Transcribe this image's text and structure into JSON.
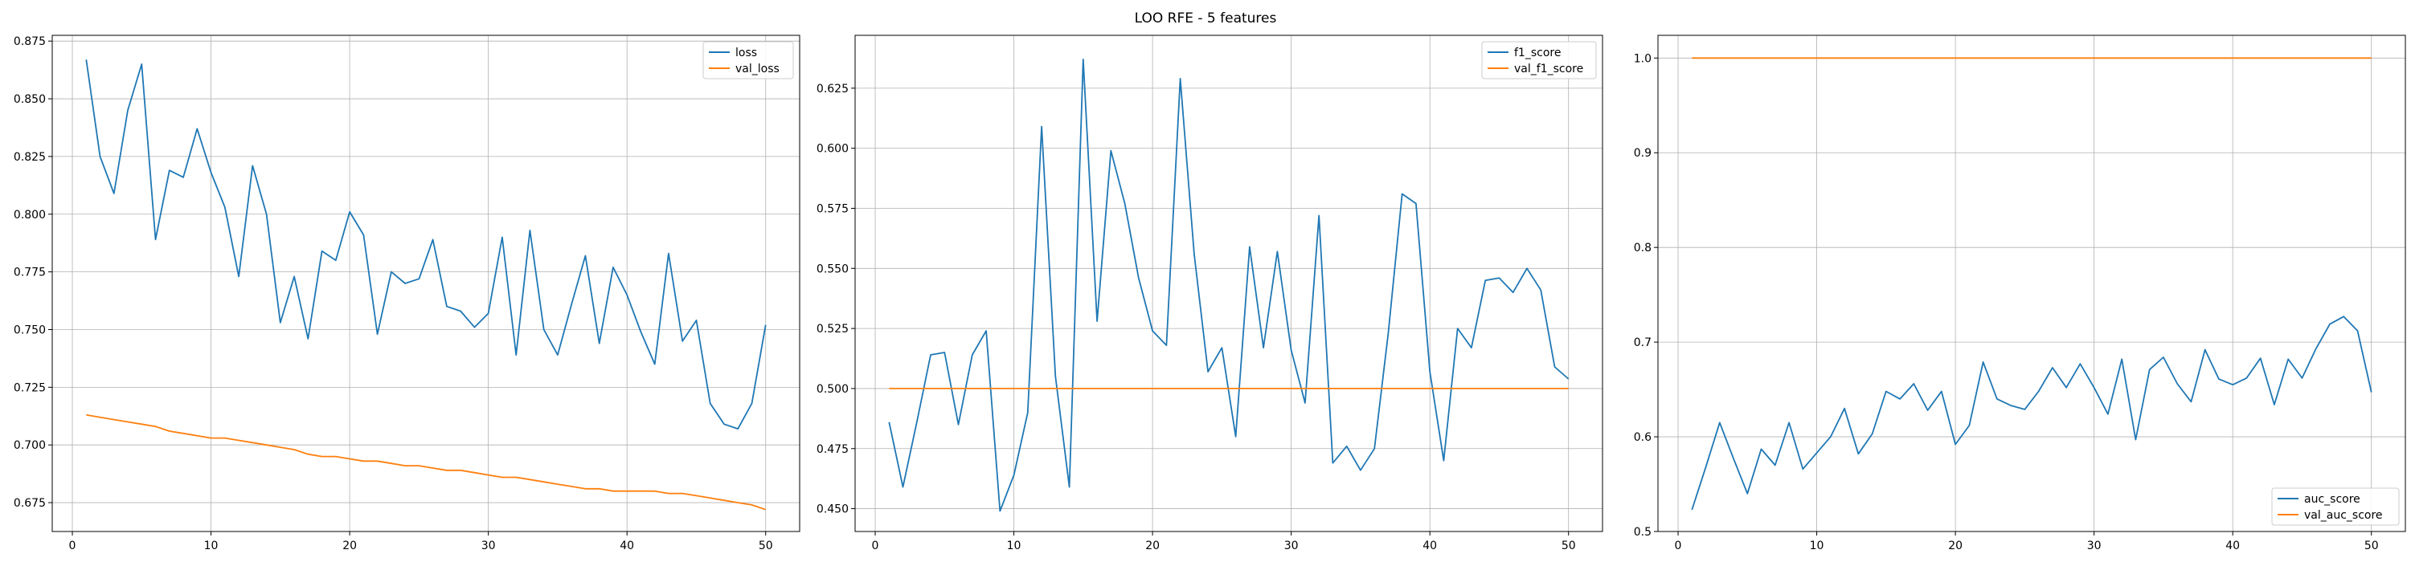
{
  "figure": {
    "title": "LOO RFE - 5 features"
  },
  "chart_data": [
    {
      "type": "line",
      "grid": true,
      "legend_position": "top-right",
      "xlim": [
        -1.45,
        52.45
      ],
      "ylim": [
        0.6625,
        0.8775
      ],
      "xticks": [
        0,
        10,
        20,
        30,
        40,
        50
      ],
      "xtick_labels": [
        "0",
        "10",
        "20",
        "30",
        "40",
        "50"
      ],
      "yticks": [
        0.675,
        0.7,
        0.725,
        0.75,
        0.775,
        0.8,
        0.825,
        0.85,
        0.875
      ],
      "ytick_labels": [
        "0.675",
        "0.700",
        "0.725",
        "0.750",
        "0.775",
        "0.800",
        "0.825",
        "0.850",
        "0.875"
      ],
      "x": [
        1,
        2,
        3,
        4,
        5,
        6,
        7,
        8,
        9,
        10,
        11,
        12,
        13,
        14,
        15,
        16,
        17,
        18,
        19,
        20,
        21,
        22,
        23,
        24,
        25,
        26,
        27,
        28,
        29,
        30,
        31,
        32,
        33,
        34,
        35,
        36,
        37,
        38,
        39,
        40,
        41,
        42,
        43,
        44,
        45,
        46,
        47,
        48,
        49,
        50
      ],
      "series": [
        {
          "name": "loss",
          "color": "#1f77b4",
          "values": [
            0.867,
            0.825,
            0.809,
            0.845,
            0.865,
            0.789,
            0.819,
            0.816,
            0.837,
            0.818,
            0.803,
            0.773,
            0.821,
            0.8,
            0.753,
            0.773,
            0.746,
            0.784,
            0.78,
            0.801,
            0.791,
            0.748,
            0.775,
            0.77,
            0.772,
            0.789,
            0.76,
            0.758,
            0.751,
            0.757,
            0.79,
            0.739,
            0.793,
            0.75,
            0.739,
            0.761,
            0.782,
            0.744,
            0.777,
            0.765,
            0.749,
            0.735,
            0.783,
            0.745,
            0.754,
            0.718,
            0.709,
            0.707,
            0.718,
            0.752
          ]
        },
        {
          "name": "val_loss",
          "color": "#ff7f0e",
          "values": [
            0.713,
            0.712,
            0.711,
            0.71,
            0.709,
            0.708,
            0.706,
            0.705,
            0.704,
            0.703,
            0.703,
            0.702,
            0.701,
            0.7,
            0.699,
            0.698,
            0.696,
            0.695,
            0.695,
            0.694,
            0.693,
            0.693,
            0.692,
            0.691,
            0.691,
            0.69,
            0.689,
            0.689,
            0.688,
            0.687,
            0.686,
            0.686,
            0.685,
            0.684,
            0.683,
            0.682,
            0.681,
            0.681,
            0.68,
            0.68,
            0.68,
            0.68,
            0.679,
            0.679,
            0.678,
            0.677,
            0.676,
            0.675,
            0.674,
            0.672
          ]
        }
      ]
    },
    {
      "type": "line",
      "grid": true,
      "legend_position": "top-right",
      "xlim": [
        -1.45,
        52.45
      ],
      "ylim": [
        0.4405,
        0.647
      ],
      "xticks": [
        0,
        10,
        20,
        30,
        40,
        50
      ],
      "xtick_labels": [
        "0",
        "10",
        "20",
        "30",
        "40",
        "50"
      ],
      "yticks": [
        0.45,
        0.475,
        0.5,
        0.525,
        0.55,
        0.575,
        0.6,
        0.625
      ],
      "ytick_labels": [
        "0.450",
        "0.475",
        "0.500",
        "0.525",
        "0.550",
        "0.575",
        "0.600",
        "0.625"
      ],
      "x": [
        1,
        2,
        3,
        4,
        5,
        6,
        7,
        8,
        9,
        10,
        11,
        12,
        13,
        14,
        15,
        16,
        17,
        18,
        19,
        20,
        21,
        22,
        23,
        24,
        25,
        26,
        27,
        28,
        29,
        30,
        31,
        32,
        33,
        34,
        35,
        36,
        37,
        38,
        39,
        40,
        41,
        42,
        43,
        44,
        45,
        46,
        47,
        48,
        49,
        50
      ],
      "series": [
        {
          "name": "f1_score",
          "color": "#1f77b4",
          "values": [
            0.486,
            0.459,
            0.486,
            0.514,
            0.515,
            0.485,
            0.514,
            0.524,
            0.449,
            0.464,
            0.49,
            0.609,
            0.505,
            0.459,
            0.637,
            0.528,
            0.599,
            0.577,
            0.546,
            0.524,
            0.518,
            0.629,
            0.556,
            0.507,
            0.517,
            0.48,
            0.559,
            0.517,
            0.557,
            0.516,
            0.494,
            0.572,
            0.469,
            0.476,
            0.466,
            0.475,
            0.523,
            0.581,
            0.577,
            0.507,
            0.47,
            0.525,
            0.517,
            0.545,
            0.546,
            0.54,
            0.55,
            0.541,
            0.509,
            0.504
          ]
        },
        {
          "name": "val_f1_score",
          "color": "#ff7f0e",
          "values": [
            0.5,
            0.5,
            0.5,
            0.5,
            0.5,
            0.5,
            0.5,
            0.5,
            0.5,
            0.5,
            0.5,
            0.5,
            0.5,
            0.5,
            0.5,
            0.5,
            0.5,
            0.5,
            0.5,
            0.5,
            0.5,
            0.5,
            0.5,
            0.5,
            0.5,
            0.5,
            0.5,
            0.5,
            0.5,
            0.5,
            0.5,
            0.5,
            0.5,
            0.5,
            0.5,
            0.5,
            0.5,
            0.5,
            0.5,
            0.5,
            0.5,
            0.5,
            0.5,
            0.5,
            0.5,
            0.5,
            0.5,
            0.5,
            0.5,
            0.5
          ]
        }
      ]
    },
    {
      "type": "line",
      "grid": true,
      "legend_position": "bottom-right",
      "xlim": [
        -1.45,
        52.45
      ],
      "ylim": [
        0.5,
        1.024
      ],
      "xticks": [
        0,
        10,
        20,
        30,
        40,
        50
      ],
      "xtick_labels": [
        "0",
        "10",
        "20",
        "30",
        "40",
        "50"
      ],
      "yticks": [
        0.5,
        0.6,
        0.7,
        0.8,
        0.9,
        1.0
      ],
      "ytick_labels": [
        "0.5",
        "0.6",
        "0.7",
        "0.8",
        "0.9",
        "1.0"
      ],
      "x": [
        1,
        2,
        3,
        4,
        5,
        6,
        7,
        8,
        9,
        10,
        11,
        12,
        13,
        14,
        15,
        16,
        17,
        18,
        19,
        20,
        21,
        22,
        23,
        24,
        25,
        26,
        27,
        28,
        29,
        30,
        31,
        32,
        33,
        34,
        35,
        36,
        37,
        38,
        39,
        40,
        41,
        42,
        43,
        44,
        45,
        46,
        47,
        48,
        49,
        50
      ],
      "series": [
        {
          "name": "auc_score",
          "color": "#1f77b4",
          "values": [
            0.523,
            0.568,
            0.615,
            0.577,
            0.54,
            0.587,
            0.57,
            0.615,
            0.566,
            0.583,
            0.6,
            0.63,
            0.582,
            0.603,
            0.648,
            0.64,
            0.656,
            0.628,
            0.648,
            0.592,
            0.612,
            0.679,
            0.64,
            0.633,
            0.629,
            0.648,
            0.673,
            0.652,
            0.677,
            0.652,
            0.624,
            0.682,
            0.597,
            0.671,
            0.684,
            0.656,
            0.637,
            0.692,
            0.661,
            0.655,
            0.662,
            0.683,
            0.634,
            0.682,
            0.662,
            0.693,
            0.719,
            0.727,
            0.712,
            0.647
          ]
        },
        {
          "name": "val_auc_score",
          "color": "#ff7f0e",
          "values": [
            1.0,
            1.0,
            1.0,
            1.0,
            1.0,
            1.0,
            1.0,
            1.0,
            1.0,
            1.0,
            1.0,
            1.0,
            1.0,
            1.0,
            1.0,
            1.0,
            1.0,
            1.0,
            1.0,
            1.0,
            1.0,
            1.0,
            1.0,
            1.0,
            1.0,
            1.0,
            1.0,
            1.0,
            1.0,
            1.0,
            1.0,
            1.0,
            1.0,
            1.0,
            1.0,
            1.0,
            1.0,
            1.0,
            1.0,
            1.0,
            1.0,
            1.0,
            1.0,
            1.0,
            1.0,
            1.0,
            1.0,
            1.0,
            1.0,
            1.0
          ]
        }
      ]
    }
  ]
}
